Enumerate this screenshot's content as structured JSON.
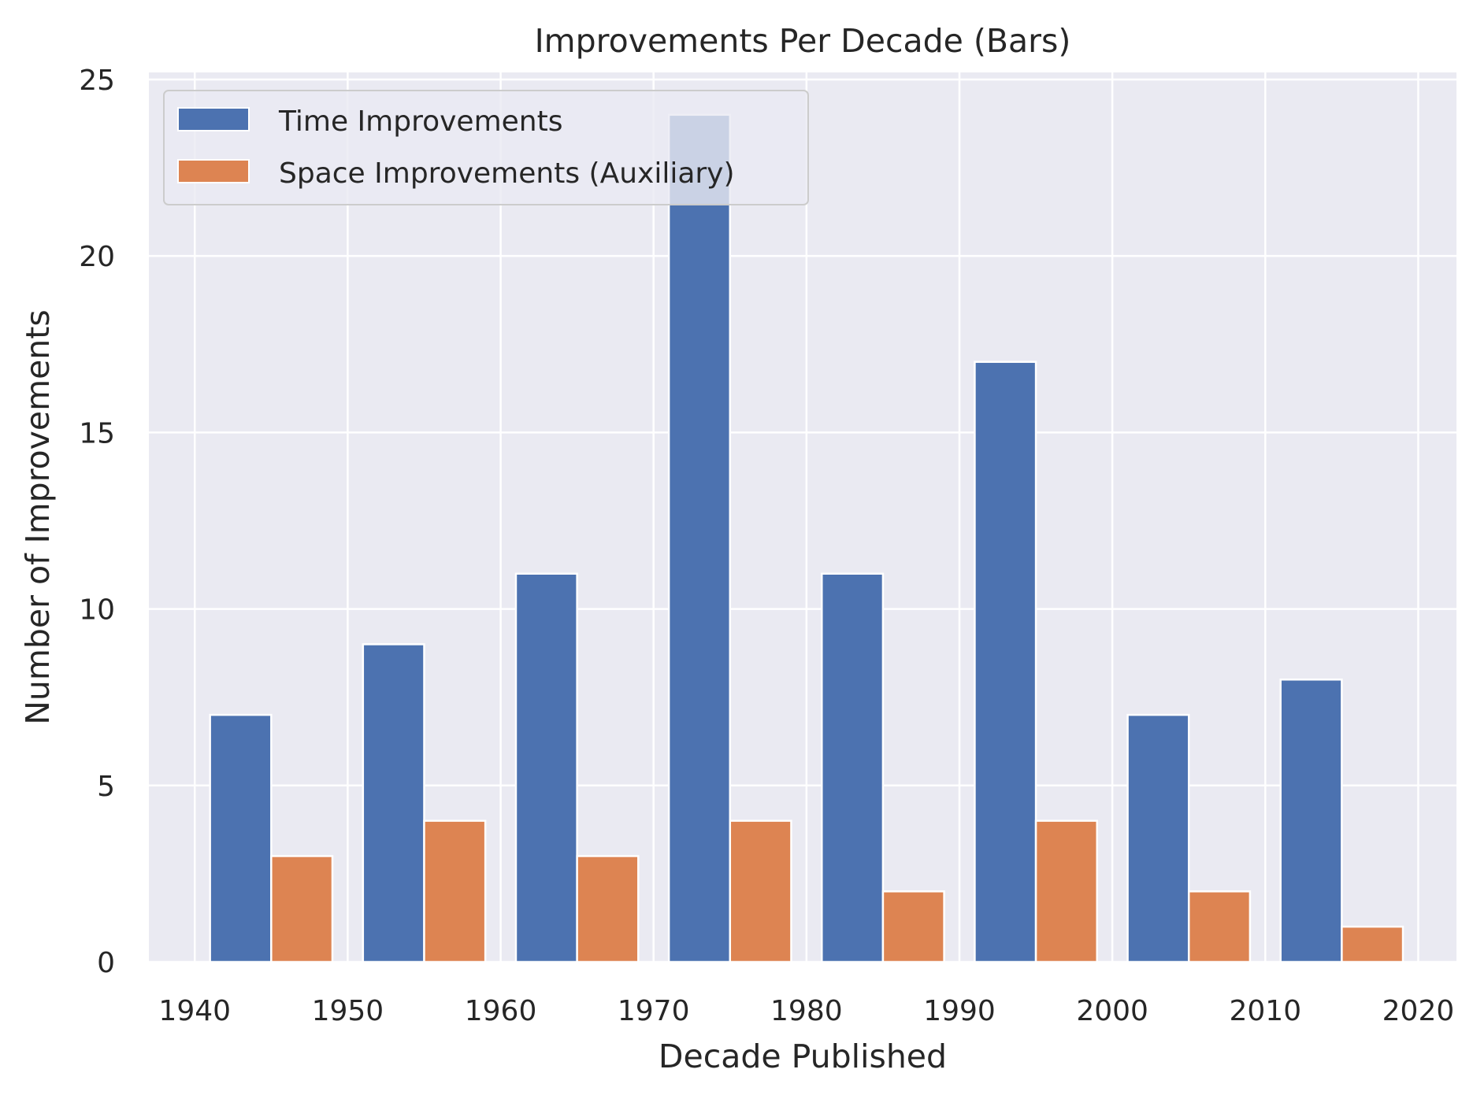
{
  "chart_data": {
    "type": "bar",
    "title": "Improvements Per Decade (Bars)",
    "xlabel": "Decade Published",
    "ylabel": "Number of Improvements",
    "categories": [
      "1940",
      "1950",
      "1960",
      "1970",
      "1980",
      "1990",
      "2000",
      "2010"
    ],
    "series": [
      {
        "name": "Time Improvements",
        "color": "#4c72b0",
        "values": [
          7,
          9,
          11,
          24,
          11,
          17,
          7,
          8
        ]
      },
      {
        "name": "Space Improvements (Auxiliary)",
        "color": "#dd8452",
        "values": [
          3,
          4,
          3,
          4,
          2,
          4,
          2,
          1
        ]
      }
    ],
    "xlim": [
      1937,
      2022.5
    ],
    "ylim": [
      0,
      25.2
    ],
    "xticks": [
      1940,
      1950,
      1960,
      1970,
      1980,
      1990,
      2000,
      2010,
      2020
    ],
    "yticks": [
      0,
      5,
      10,
      15,
      20,
      25
    ],
    "grid": true,
    "legend_position": "upper-left",
    "background": "#eaeaf2"
  }
}
